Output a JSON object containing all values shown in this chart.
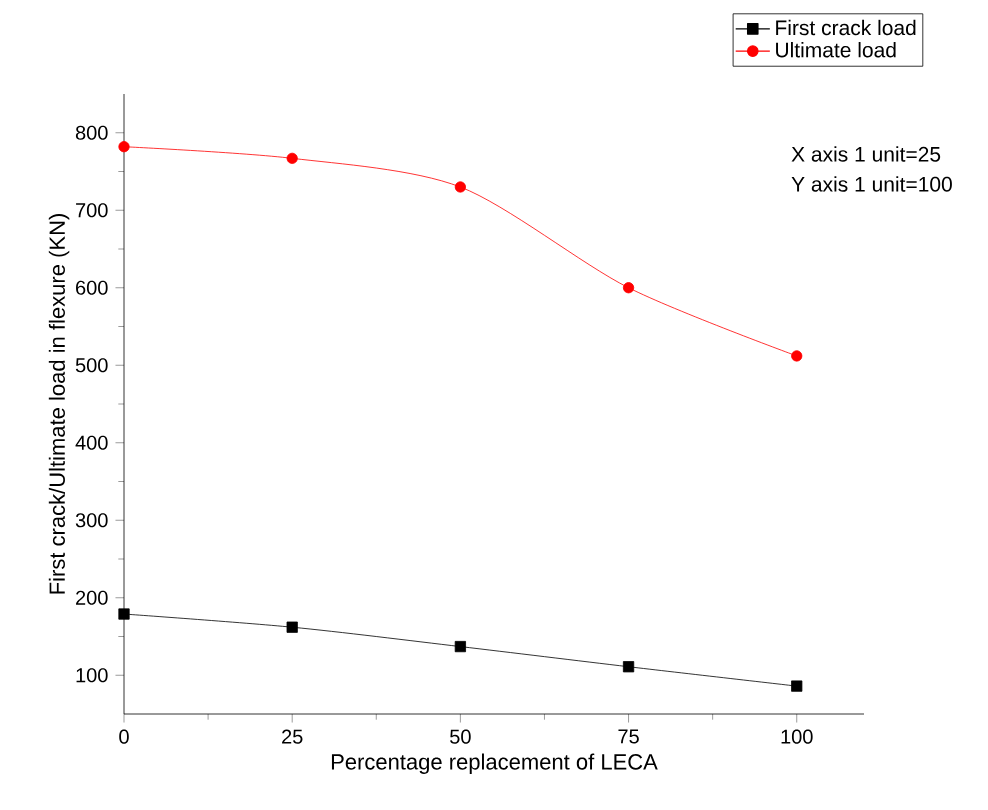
{
  "chart_data": {
    "type": "line",
    "xlabel": "Percentage replacement of LECA",
    "ylabel": "First crack/Ultimate load in flexure (KN)",
    "x": [
      0,
      25,
      50,
      75,
      100
    ],
    "series": [
      {
        "name": "First crack load",
        "color": "#000000",
        "marker": "square",
        "values": [
          179,
          162,
          137,
          111,
          86
        ]
      },
      {
        "name": "Ultimate load",
        "color": "#ff0000",
        "marker": "circle",
        "values": [
          782,
          767,
          730,
          600,
          512
        ]
      }
    ],
    "xlim": [
      0,
      110
    ],
    "ylim": [
      50,
      850
    ],
    "xticks": [
      0,
      25,
      50,
      75,
      100
    ],
    "yticks": [
      100,
      200,
      300,
      400,
      500,
      600,
      700,
      800
    ],
    "annotations": [
      "X axis 1 unit=25",
      "Y axis 1 unit=100"
    ],
    "legend": "top right",
    "grid": false,
    "line_style": "solid"
  }
}
